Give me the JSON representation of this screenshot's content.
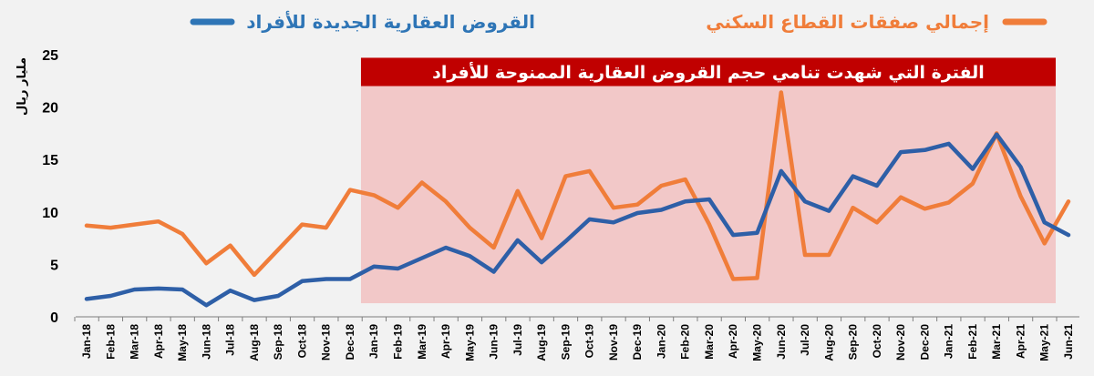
{
  "chart_data": {
    "type": "line",
    "title": "",
    "ylabel": "مليار ريال",
    "ylim": [
      0,
      25
    ],
    "yticks": [
      0,
      5,
      10,
      15,
      20,
      25
    ],
    "grid": false,
    "legend_position": "top",
    "categories": [
      "Jan-18",
      "Feb-18",
      "Mar-18",
      "Apr-18",
      "May-18",
      "Jun-18",
      "Jul-18",
      "Aug-18",
      "Sep-18",
      "Oct-18",
      "Nov-18",
      "Dec-18",
      "Jan-19",
      "Feb-19",
      "Mar-19",
      "Apr-19",
      "May-19",
      "Jun-19",
      "Jul-19",
      "Aug-19",
      "Sep-19",
      "Oct-19",
      "Nov-19",
      "Dec-19",
      "Jan-20",
      "Feb-20",
      "Mar-20",
      "Apr-20",
      "May-20",
      "Jun-20",
      "Jul-20",
      "Aug-20",
      "Sep-20",
      "Oct-20",
      "Nov-20",
      "Dec-20",
      "Jan-21",
      "Feb-21",
      "Mar-21",
      "Apr-21",
      "May-21",
      "Jun-21"
    ],
    "series": [
      {
        "name": "القروض العقارية الجديدة للأفراد",
        "color": "#2e5fa7",
        "values": [
          1.7,
          2.0,
          2.6,
          2.7,
          2.6,
          1.1,
          2.5,
          1.6,
          2.0,
          3.4,
          3.6,
          3.6,
          4.8,
          4.6,
          5.6,
          6.6,
          5.8,
          4.3,
          7.3,
          5.2,
          7.2,
          9.3,
          9.0,
          9.9,
          10.2,
          11.0,
          11.2,
          7.8,
          8.0,
          13.9,
          11.0,
          10.1,
          13.4,
          12.5,
          15.7,
          15.9,
          16.5,
          14.1,
          17.4,
          14.3,
          9.0,
          7.8
        ]
      },
      {
        "name": "إجمالي صفقات القطاع السكني",
        "color": "#f07d3a",
        "values": [
          8.7,
          8.5,
          8.8,
          9.1,
          7.9,
          5.1,
          6.8,
          4.0,
          6.4,
          8.8,
          8.5,
          12.1,
          11.6,
          10.4,
          12.8,
          11.0,
          8.5,
          6.6,
          12.0,
          7.5,
          13.4,
          13.9,
          10.4,
          10.7,
          12.5,
          13.1,
          8.8,
          3.6,
          3.7,
          21.4,
          5.9,
          5.9,
          10.4,
          9.0,
          11.4,
          10.3,
          10.9,
          12.7,
          17.5,
          11.5,
          7.0,
          11.0
        ]
      }
    ],
    "annotation": {
      "text": "الفترة التي شهدت تنامي حجم القروض العقارية الممنوحة للأفراد",
      "from": "Dec-18",
      "to": "Jun-21",
      "shade_color": "#f2c3c3",
      "banner_color": "#c00000"
    }
  }
}
